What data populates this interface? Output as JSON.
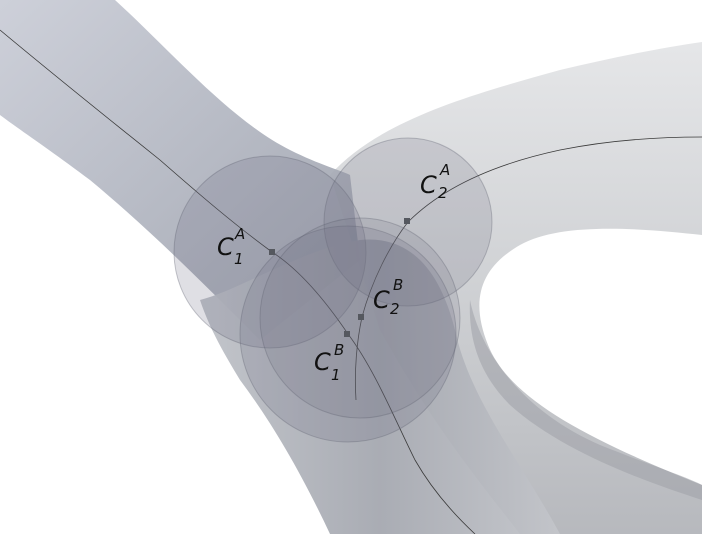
{
  "colors": {
    "background": "#ffffff",
    "vessel_fill": "#a9adb6",
    "vessel_shade": "#8f939e",
    "sphere_fill": "#6d6f82",
    "centerline": "#3a3a3a",
    "marker": "#55585f",
    "label": "#111111"
  },
  "labels": [
    {
      "id": "c1a",
      "letter": "C",
      "sub": "1",
      "sup": "A"
    },
    {
      "id": "c2a",
      "letter": "C",
      "sub": "2",
      "sup": "A"
    },
    {
      "id": "c1b",
      "letter": "C",
      "sub": "1",
      "sup": "B"
    },
    {
      "id": "c2b",
      "letter": "C",
      "sub": "2",
      "sup": "B"
    }
  ]
}
